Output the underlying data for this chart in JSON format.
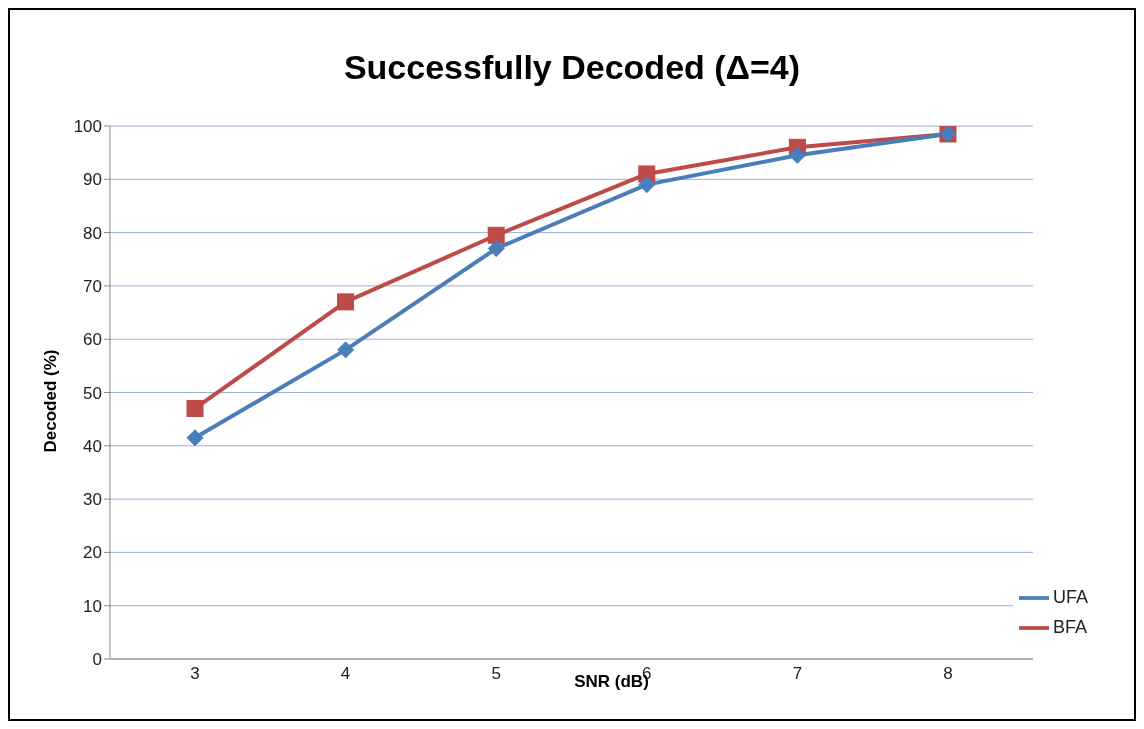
{
  "chart_data": {
    "type": "line",
    "title": "Successfully Decoded (Δ=4)",
    "xlabel": "SNR (dB)",
    "ylabel": "Decoded (%)",
    "categories": [
      "3",
      "4",
      "5",
      "6",
      "7",
      "8"
    ],
    "series": [
      {
        "name": "UFA",
        "color": "#4a7ebb",
        "marker": "diamond",
        "values": [
          41.5,
          58,
          77,
          89,
          94.5,
          98.5
        ]
      },
      {
        "name": "BFA",
        "color": "#be4b48",
        "marker": "square",
        "values": [
          47,
          67,
          79.5,
          91,
          96,
          98.5
        ]
      }
    ],
    "ylim": [
      0,
      100
    ],
    "yticks": [
      0,
      10,
      20,
      30,
      40,
      50,
      60,
      70,
      80,
      90,
      100
    ],
    "grid": "y",
    "legend": "bottom right",
    "line_style": "solid"
  }
}
